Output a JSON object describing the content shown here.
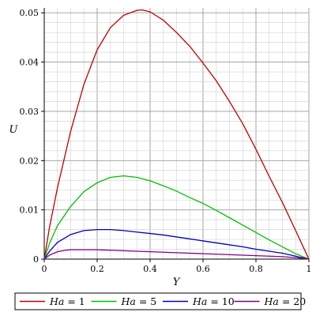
{
  "chart_data": {
    "type": "line",
    "xlabel": "Y",
    "ylabel": "U",
    "xlim": [
      0,
      1
    ],
    "ylim": [
      0,
      0.051
    ],
    "x_ticks": [
      "0",
      "0.2",
      "0.4",
      "0.6",
      "0.8",
      "1"
    ],
    "y_ticks": [
      "0",
      "0.01",
      "0.02",
      "0.03",
      "0.04",
      "0.05"
    ],
    "grid": true,
    "legend_position": "bottom",
    "series": [
      {
        "name": "Ha = 1",
        "legend_var": "Ha",
        "legend_value": "= 1",
        "color": "#c00000",
        "x": [
          0,
          0.02,
          0.05,
          0.1,
          0.15,
          0.2,
          0.25,
          0.3,
          0.35,
          0.37,
          0.4,
          0.45,
          0.5,
          0.55,
          0.6,
          0.65,
          0.7,
          0.75,
          0.8,
          0.85,
          0.9,
          0.95,
          1
        ],
        "y": [
          0,
          0.0065,
          0.0145,
          0.026,
          0.0355,
          0.0425,
          0.047,
          0.0495,
          0.0505,
          0.0506,
          0.0502,
          0.0485,
          0.046,
          0.0432,
          0.0398,
          0.0362,
          0.032,
          0.0275,
          0.0223,
          0.0168,
          0.0115,
          0.0058,
          0
        ]
      },
      {
        "name": "Ha = 5",
        "legend_var": "Ha",
        "legend_value": "= 5",
        "color": "#00c000",
        "x": [
          0,
          0.02,
          0.05,
          0.1,
          0.15,
          0.2,
          0.25,
          0.3,
          0.35,
          0.4,
          0.45,
          0.5,
          0.55,
          0.6,
          0.65,
          0.7,
          0.75,
          0.8,
          0.85,
          0.9,
          0.95,
          1
        ],
        "y": [
          0,
          0.0032,
          0.0068,
          0.0107,
          0.0137,
          0.0155,
          0.0166,
          0.0169,
          0.0166,
          0.0159,
          0.0149,
          0.0138,
          0.0125,
          0.0113,
          0.0099,
          0.0084,
          0.0069,
          0.0054,
          0.0039,
          0.0025,
          0.0011,
          0
        ]
      },
      {
        "name": "Ha = 10",
        "legend_var": "Ha",
        "legend_value": "= 10",
        "color": "#0000c0",
        "x": [
          0,
          0.02,
          0.05,
          0.1,
          0.15,
          0.2,
          0.25,
          0.3,
          0.35,
          0.4,
          0.45,
          0.5,
          0.55,
          0.6,
          0.65,
          0.7,
          0.75,
          0.8,
          0.85,
          0.9,
          0.95,
          1
        ],
        "y": [
          0,
          0.0016,
          0.0034,
          0.005,
          0.0058,
          0.006,
          0.006,
          0.0058,
          0.0055,
          0.0052,
          0.0049,
          0.0045,
          0.0041,
          0.0037,
          0.0033,
          0.0029,
          0.0025,
          0.002,
          0.0016,
          0.0012,
          0.0006,
          0
        ]
      },
      {
        "name": "Ha = 20",
        "legend_var": "Ha",
        "legend_value": "= 20",
        "color": "#800080",
        "x": [
          0,
          0.02,
          0.05,
          0.08,
          0.1,
          0.15,
          0.2,
          0.25,
          0.3,
          0.4,
          0.5,
          0.6,
          0.7,
          0.8,
          0.9,
          0.95,
          1
        ],
        "y": [
          0,
          0.0008,
          0.0015,
          0.0018,
          0.0019,
          0.0019,
          0.0019,
          0.0018,
          0.0017,
          0.0015,
          0.0013,
          0.0011,
          0.0009,
          0.0007,
          0.0005,
          0.0003,
          0
        ]
      }
    ]
  }
}
